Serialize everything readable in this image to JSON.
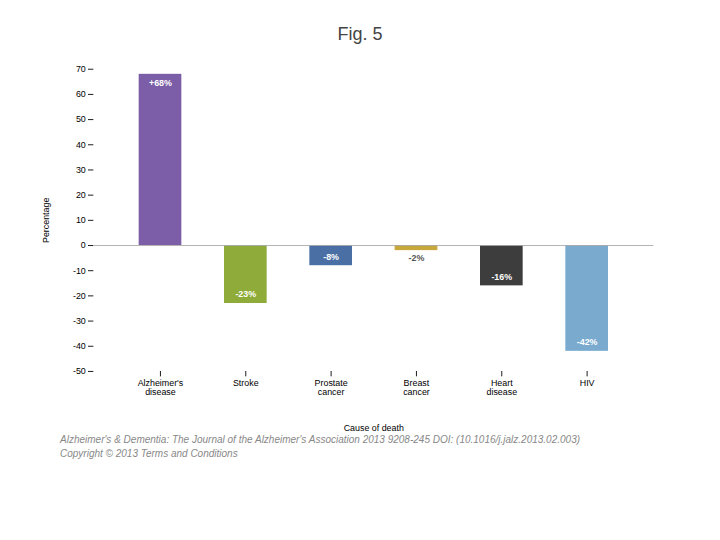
{
  "chart_data": {
    "type": "bar",
    "title": "Fig. 5",
    "categories": [
      "Alzheimer's\ndisease",
      "Stroke",
      "Prostate\ncancer",
      "Breast\ncancer",
      "Heart\ndisease",
      "HIV"
    ],
    "values": [
      68,
      -23,
      -8,
      -2,
      -16,
      -42
    ],
    "value_labels": [
      "+68%",
      "-23%",
      "-8%",
      "-2%",
      "-16%",
      "-42%"
    ],
    "data_labels": true,
    "colors": [
      "#7b5ea7",
      "#8fac3a",
      "#4a6fa5",
      "#c8a83a",
      "#3d3d3d",
      "#7aabcf"
    ],
    "ylabel": "Percentage",
    "xlabel": "Cause of death",
    "ylim": [
      -50,
      70
    ],
    "yticks": [
      -50,
      -40,
      -30,
      -20,
      -10,
      0,
      10,
      20,
      30,
      40,
      50,
      60,
      70
    ],
    "grid": false,
    "annotations": [
      "Alzheimer's & Dementia: The Journal of the Alzheimer's Association 2013 9208-245 DOI: (10.1016/j.jalz.2013.02.003)",
      "Copyright © 2013  Terms and Conditions"
    ]
  }
}
